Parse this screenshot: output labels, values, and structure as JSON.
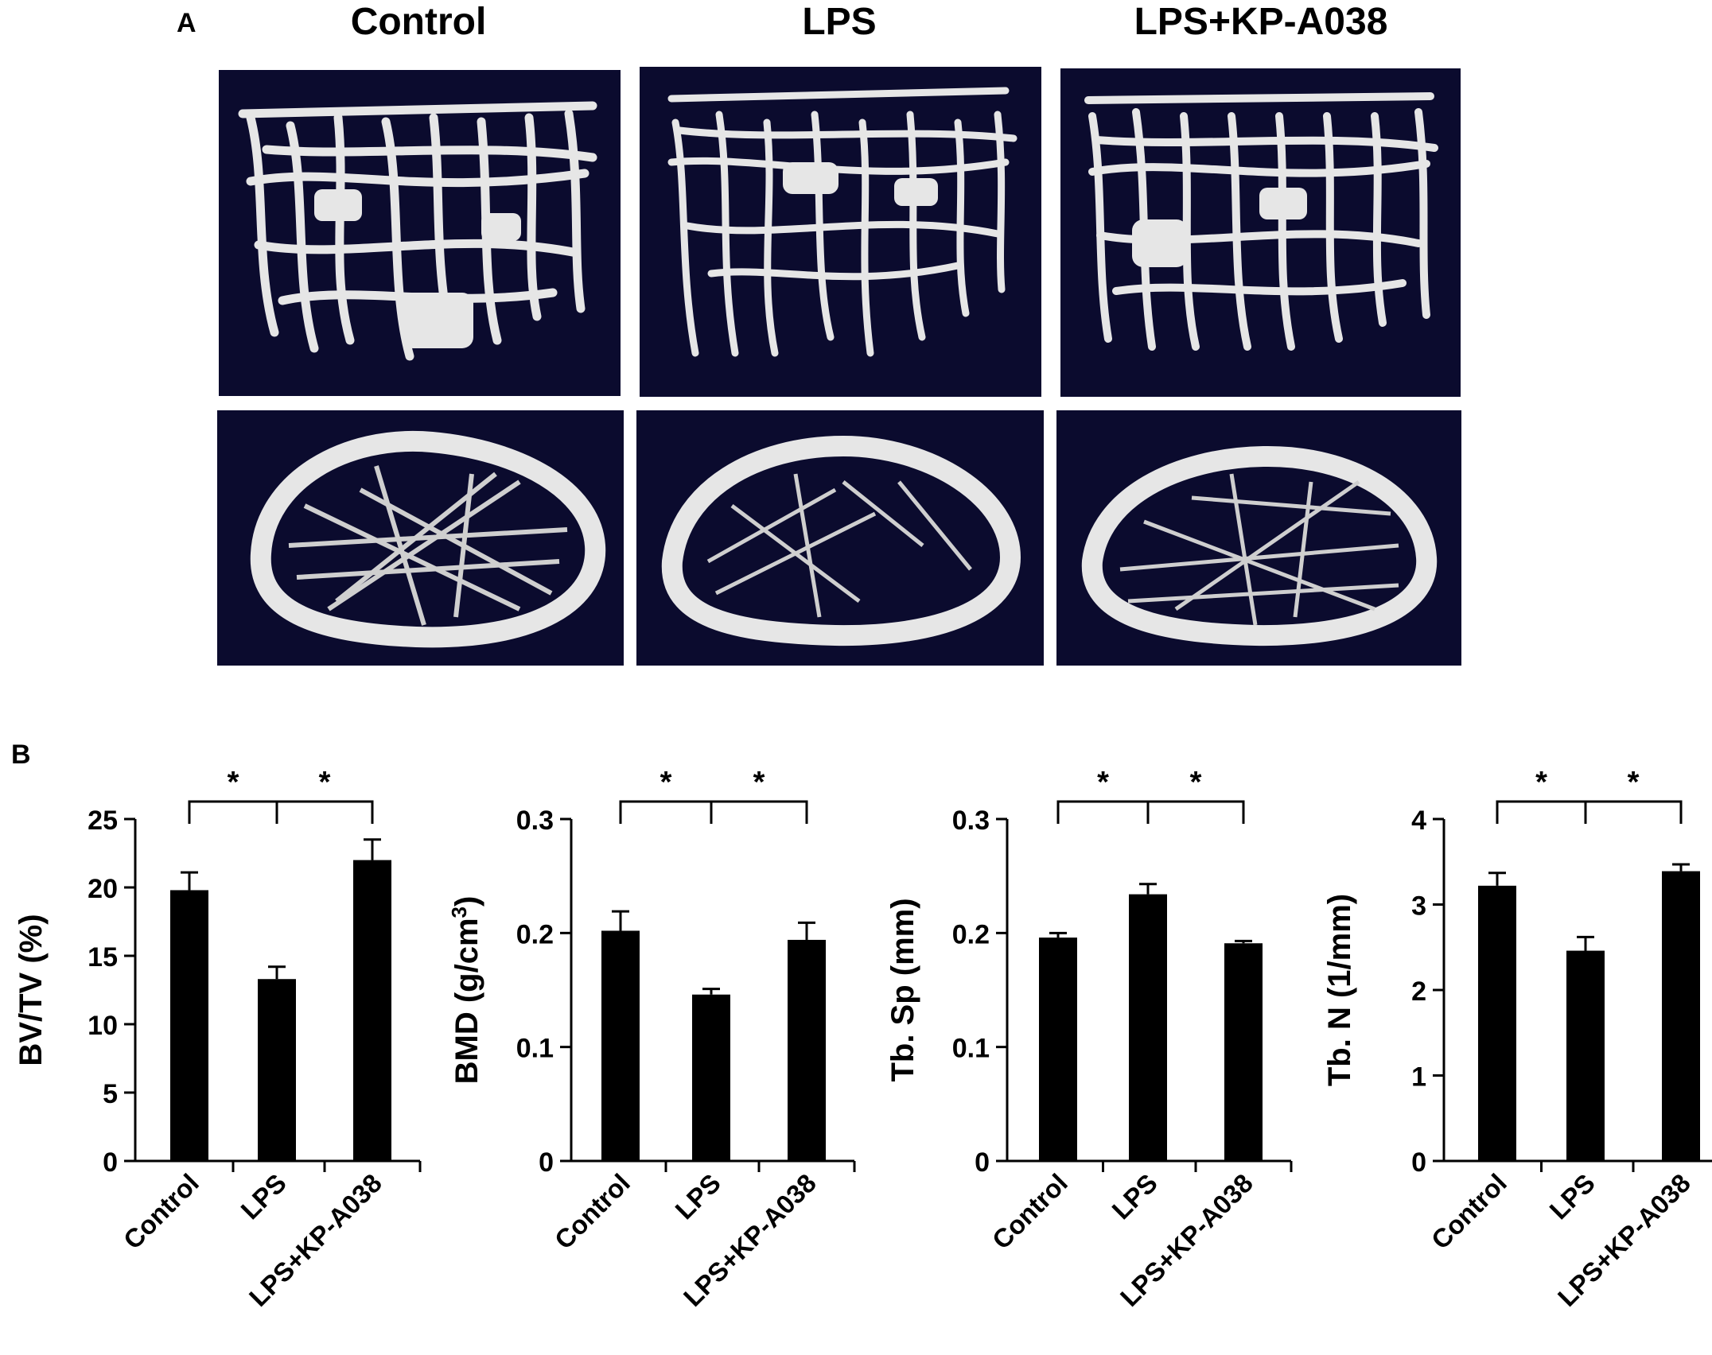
{
  "panels": {
    "a_letter": "A",
    "b_letter": "B"
  },
  "image_columns": [
    "Control",
    "LPS",
    "LPS+KP-A038"
  ],
  "colors": {
    "image_background": "#0b0b2e",
    "bone": "#e6e6e6",
    "bar": "#000000"
  },
  "chart_data": [
    {
      "type": "bar",
      "categories": [
        "Control",
        "LPS",
        "LPS+KP-A038"
      ],
      "values": [
        19.8,
        13.3,
        22.0
      ],
      "errors": [
        1.3,
        0.9,
        1.5
      ],
      "ylabel": "BV/TV (%)",
      "ylim": [
        0,
        25
      ],
      "yticks": [
        "0",
        "5",
        "10",
        "15",
        "20",
        "25"
      ],
      "significance": [
        {
          "from": 0,
          "to": 1,
          "label": "*"
        },
        {
          "from": 1,
          "to": 2,
          "label": "*"
        }
      ]
    },
    {
      "type": "bar",
      "categories": [
        "Control",
        "LPS",
        "LPS+KP-A038"
      ],
      "values": [
        0.202,
        0.146,
        0.194
      ],
      "errors": [
        0.017,
        0.005,
        0.015
      ],
      "ylabel": "BMD (g/cm",
      "ylabel_sup": "3",
      "ylabel_end": ")",
      "ylim": [
        0,
        0.3
      ],
      "yticks": [
        "0",
        "0.1",
        "0.2",
        "0.3"
      ],
      "significance": [
        {
          "from": 0,
          "to": 1,
          "label": "*"
        },
        {
          "from": 1,
          "to": 2,
          "label": "*"
        }
      ]
    },
    {
      "type": "bar",
      "categories": [
        "Control",
        "LPS",
        "LPS+KP-A038"
      ],
      "values": [
        0.196,
        0.234,
        0.191
      ],
      "errors": [
        0.004,
        0.009,
        0.002
      ],
      "ylabel": "Tb. Sp (mm)",
      "ylim": [
        0,
        0.3
      ],
      "yticks": [
        "0",
        "0.1",
        "0.2",
        "0.3"
      ],
      "significance": [
        {
          "from": 0,
          "to": 1,
          "label": "*"
        },
        {
          "from": 1,
          "to": 2,
          "label": "*"
        }
      ]
    },
    {
      "type": "bar",
      "categories": [
        "Control",
        "LPS",
        "LPS+KP-A038"
      ],
      "values": [
        3.22,
        2.46,
        3.39
      ],
      "errors": [
        0.15,
        0.16,
        0.08
      ],
      "ylabel": "Tb. N (1/mm)",
      "ylim": [
        0,
        4
      ],
      "yticks": [
        "0",
        "1",
        "2",
        "3",
        "4"
      ],
      "significance": [
        {
          "from": 0,
          "to": 1,
          "label": "*"
        },
        {
          "from": 1,
          "to": 2,
          "label": "*"
        }
      ]
    }
  ]
}
